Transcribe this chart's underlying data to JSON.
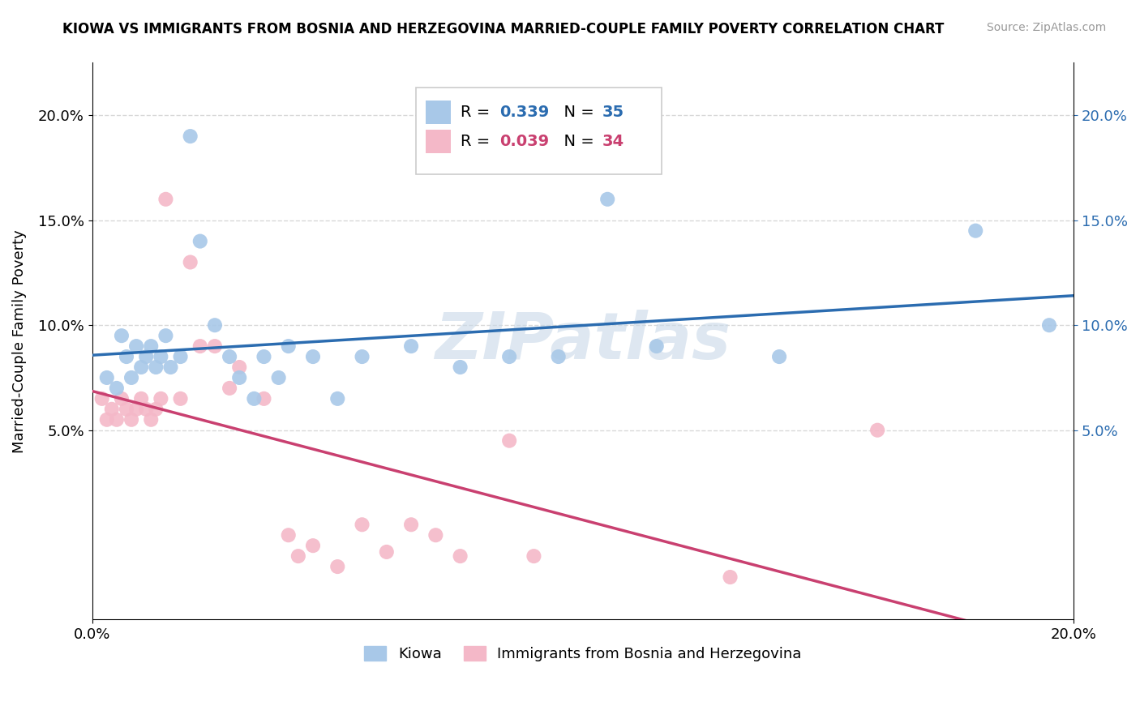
{
  "title": "KIOWA VS IMMIGRANTS FROM BOSNIA AND HERZEGOVINA MARRIED-COUPLE FAMILY POVERTY CORRELATION CHART",
  "source": "Source: ZipAtlas.com",
  "ylabel": "Married-Couple Family Poverty",
  "watermark": "ZIPatlas",
  "legend_blue_label": "Kiowa",
  "legend_pink_label": "Immigrants from Bosnia and Herzegovina",
  "blue_R": "0.339",
  "blue_N": "35",
  "pink_R": "0.039",
  "pink_N": "34",
  "blue_color": "#a8c8e8",
  "pink_color": "#f4b8c8",
  "blue_line_color": "#2b6cb0",
  "pink_line_color": "#c94070",
  "background_color": "#ffffff",
  "grid_color": "#d8d8d8",
  "xlim": [
    0.0,
    0.2
  ],
  "ylim": [
    -0.04,
    0.225
  ],
  "yticks": [
    0.05,
    0.1,
    0.15,
    0.2
  ],
  "xticks": [
    0.0,
    0.2
  ],
  "blue_x": [
    0.003,
    0.005,
    0.006,
    0.007,
    0.008,
    0.009,
    0.01,
    0.011,
    0.012,
    0.013,
    0.014,
    0.015,
    0.016,
    0.018,
    0.02,
    0.022,
    0.025,
    0.028,
    0.03,
    0.033,
    0.035,
    0.038,
    0.04,
    0.045,
    0.05,
    0.055,
    0.065,
    0.075,
    0.085,
    0.095,
    0.105,
    0.115,
    0.14,
    0.18,
    0.195
  ],
  "blue_y": [
    0.075,
    0.07,
    0.095,
    0.085,
    0.075,
    0.09,
    0.08,
    0.085,
    0.09,
    0.08,
    0.085,
    0.095,
    0.08,
    0.085,
    0.19,
    0.14,
    0.1,
    0.085,
    0.075,
    0.065,
    0.085,
    0.075,
    0.09,
    0.085,
    0.065,
    0.085,
    0.09,
    0.08,
    0.085,
    0.085,
    0.16,
    0.09,
    0.085,
    0.145,
    0.1
  ],
  "pink_x": [
    0.002,
    0.003,
    0.004,
    0.005,
    0.006,
    0.007,
    0.008,
    0.009,
    0.01,
    0.011,
    0.012,
    0.013,
    0.014,
    0.015,
    0.018,
    0.02,
    0.022,
    0.025,
    0.028,
    0.03,
    0.035,
    0.04,
    0.042,
    0.045,
    0.05,
    0.055,
    0.06,
    0.065,
    0.07,
    0.075,
    0.085,
    0.09,
    0.13,
    0.16
  ],
  "pink_y": [
    0.065,
    0.055,
    0.06,
    0.055,
    0.065,
    0.06,
    0.055,
    0.06,
    0.065,
    0.06,
    0.055,
    0.06,
    0.065,
    0.16,
    0.065,
    0.13,
    0.09,
    0.09,
    0.07,
    0.08,
    0.065,
    0.0,
    -0.01,
    -0.005,
    -0.015,
    0.005,
    -0.008,
    0.005,
    0.0,
    -0.01,
    0.045,
    -0.01,
    -0.02,
    0.05
  ]
}
